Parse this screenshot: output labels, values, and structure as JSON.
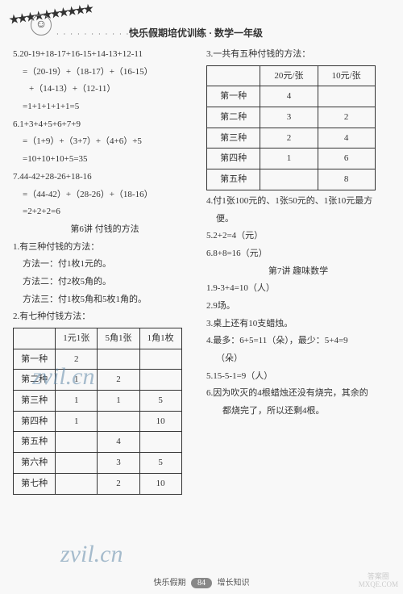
{
  "header": {
    "title": "快乐假期培优训练 · 数学一年级",
    "stars": "★★★★★★★★★★",
    "dots": "· · · · · · · · · · · · · · · ·"
  },
  "left": {
    "p5": {
      "line1": "5.20-19+18-17+16-15+14-13+12-11",
      "line2": "=（20-19）+（18-17）+（16-15）",
      "line3": "+（14-13）+（12-11）",
      "line4": "=1+1+1+1+1=5"
    },
    "p6": {
      "line1": "6.1+3+4+5+6+7+9",
      "line2": "=（1+9）+（3+7）+（4+6）+5",
      "line3": "=10+10+10+5=35"
    },
    "p7": {
      "line1": "7.44-42+28-26+18-16",
      "line2": "=（44-42）+（28-26）+（18-16）",
      "line3": "=2+2+2=6"
    },
    "section6": "第6讲 付钱的方法",
    "q1": {
      "l1": "1.有三种付钱的方法：",
      "l2": "方法一：付1枚1元的。",
      "l3": "方法二：付2枚5角的。",
      "l4": "方法三：付1枚5角和5枚1角的。"
    },
    "q2": "2.有七种付钱方法：",
    "table1": {
      "headers": [
        "",
        "1元1张",
        "5角1张",
        "1角1枚"
      ],
      "rows": [
        [
          "第一种",
          "2",
          "",
          ""
        ],
        [
          "第二种",
          "1",
          "2",
          ""
        ],
        [
          "第三种",
          "1",
          "1",
          "5"
        ],
        [
          "第四种",
          "1",
          "",
          "10"
        ],
        [
          "第五种",
          "",
          "4",
          ""
        ],
        [
          "第六种",
          "",
          "3",
          "5"
        ],
        [
          "第七种",
          "",
          "2",
          "10"
        ]
      ]
    }
  },
  "right": {
    "q3": "3.一共有五种付钱的方法：",
    "table2": {
      "headers": [
        "",
        "20元/张",
        "10元/张"
      ],
      "rows": [
        [
          "第一种",
          "4",
          ""
        ],
        [
          "第二种",
          "3",
          "2"
        ],
        [
          "第三种",
          "2",
          "4"
        ],
        [
          "第四种",
          "1",
          "6"
        ],
        [
          "第五种",
          "",
          "8"
        ]
      ]
    },
    "q4a": "4.付1张100元的、1张50元的、1张10元最方",
    "q4b": "便。",
    "q5": "5.2+2=4（元）",
    "q6": "6.8+8=16（元）",
    "section7": "第7讲 趣味数学",
    "r1": "1.9-3+4=10（人）",
    "r2": "2.9场。",
    "r3": "3.桌上还有10支蜡烛。",
    "r4a": "4.最多：6+5=11（朵），最少：5+4=9",
    "r4b": "（朵）",
    "r5": "5.15-5-1=9（人）",
    "r6a": "6.因为吹灭的4根蜡烛还没有烧完，其余的",
    "r6b": "都烧完了，所以还剩4根。"
  },
  "footer": {
    "left": "快乐假期",
    "page": "84",
    "right": "增长知识"
  },
  "wm": "zvil.cn",
  "corner": {
    "top": "答案圈",
    "bot": "MXQE.COM"
  }
}
